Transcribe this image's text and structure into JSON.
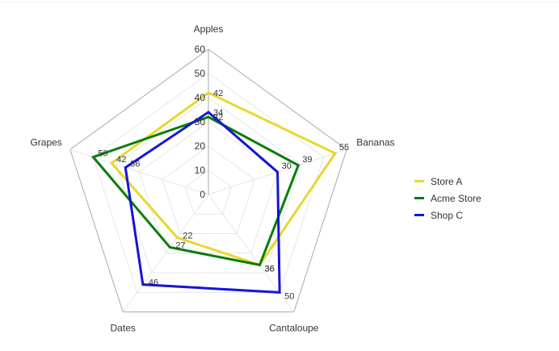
{
  "chart_data": {
    "type": "radar",
    "title": "",
    "categories": [
      "Apples",
      "Bananas",
      "Cantaloupe",
      "Dates",
      "Grapes"
    ],
    "rlim": [
      0,
      60
    ],
    "ticks": [
      0,
      10,
      20,
      30,
      40,
      50,
      60
    ],
    "grid": true,
    "legend_position": "right",
    "series": [
      {
        "name": "Store A",
        "color": "#e6d82e",
        "values": [
          42,
          55,
          36,
          22,
          42
        ]
      },
      {
        "name": "Acme Store",
        "color": "#0a7d0a",
        "values": [
          32,
          39,
          36,
          27,
          50
        ]
      },
      {
        "name": "Shop C",
        "color": "#1515d6",
        "values": [
          34,
          30,
          50,
          46,
          36
        ]
      }
    ]
  }
}
